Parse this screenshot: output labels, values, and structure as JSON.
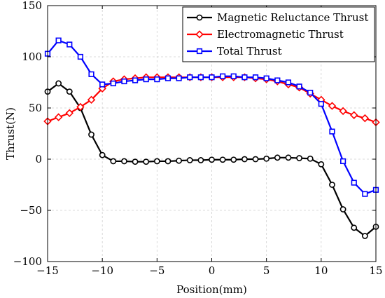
{
  "chart_data": {
    "type": "line",
    "title": "",
    "xlabel": "Position(mm)",
    "ylabel": "Thrust(N)",
    "xlim": [
      -15,
      15
    ],
    "ylim": [
      -100,
      150
    ],
    "xticks": [
      -15,
      -10,
      -5,
      0,
      5,
      10,
      15
    ],
    "yticks": [
      -100,
      -50,
      0,
      50,
      100,
      150
    ],
    "grid": true,
    "legend_position": "top-right",
    "x": [
      -15,
      -14,
      -13,
      -12,
      -11,
      -10,
      -9,
      -8,
      -7,
      -6,
      -5,
      -4,
      -3,
      -2,
      -1,
      0,
      1,
      2,
      3,
      4,
      5,
      6,
      7,
      8,
      9,
      10,
      11,
      12,
      13,
      14,
      15
    ],
    "series": [
      {
        "name": "Magnetic Reluctance Thrust",
        "color": "#000000",
        "marker": "circle",
        "values": [
          66,
          74,
          66,
          50,
          24,
          4,
          -2,
          -2,
          -2.5,
          -2.5,
          -2,
          -2,
          -1.5,
          -1,
          -1,
          -0.5,
          -0.5,
          -0.5,
          0,
          0,
          0.5,
          1.5,
          1.5,
          1,
          0.5,
          -5,
          -25,
          -49,
          -67,
          -75,
          -66
        ]
      },
      {
        "name": "Electromagnetic Thrust",
        "color": "#ff0000",
        "marker": "diamond",
        "values": [
          37,
          41,
          45,
          51,
          58,
          69,
          76,
          78,
          79,
          80,
          80,
          80,
          80,
          80,
          80,
          80,
          80,
          80,
          80,
          79,
          78,
          76,
          73,
          70,
          64,
          58,
          52,
          47,
          43,
          40,
          36
        ]
      },
      {
        "name": "Total Thrust",
        "color": "#0000ff",
        "marker": "square",
        "values": [
          103,
          116,
          112,
          100,
          83,
          73,
          74,
          76,
          77,
          78,
          78,
          79,
          79,
          80,
          80,
          80,
          81,
          81,
          80,
          80,
          79,
          77,
          75,
          71,
          65,
          54,
          27,
          -2,
          -23,
          -34,
          -30
        ]
      }
    ]
  }
}
